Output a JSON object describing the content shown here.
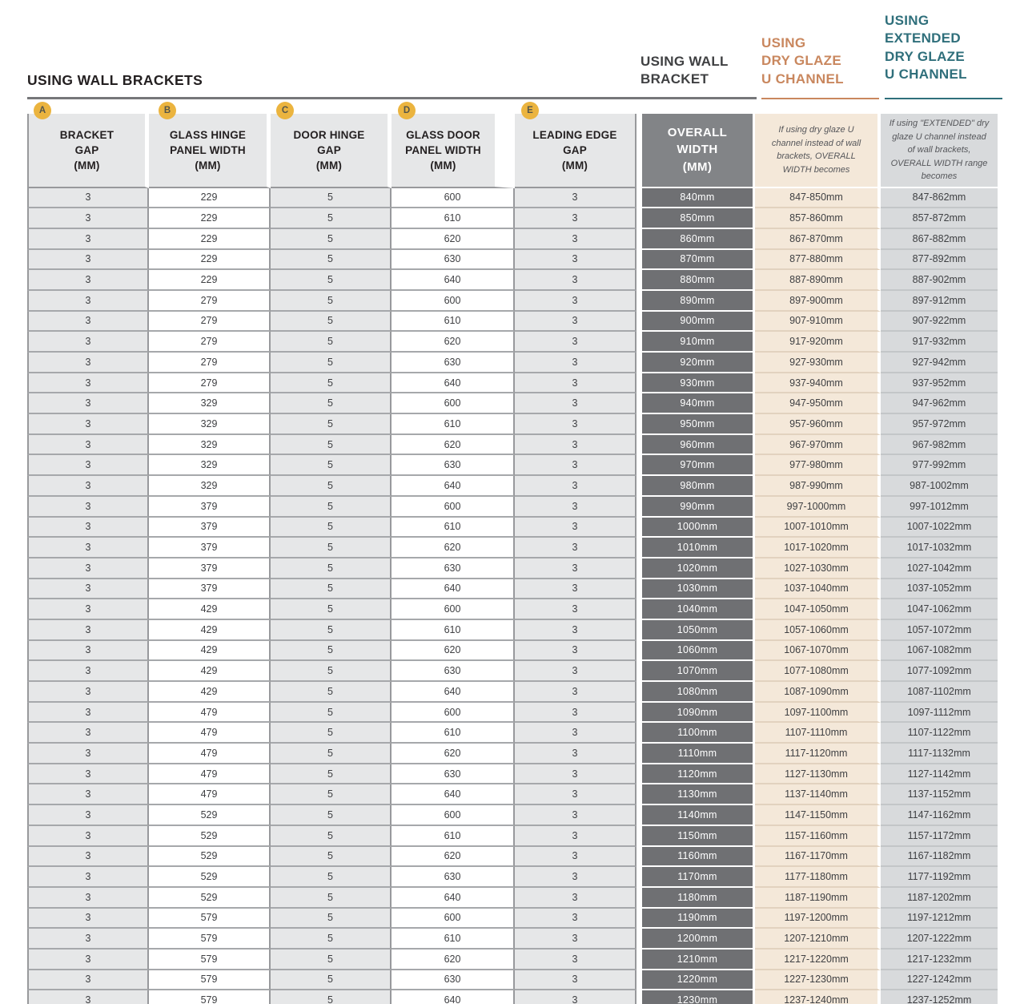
{
  "page": {
    "title": "USING WALL BRACKETS"
  },
  "group_headers": {
    "wall_bracket": {
      "label": "USING WALL\nBRACKET",
      "color": "#3F4042"
    },
    "dry_glaze": {
      "label": "USING\nDRY GLAZE\nU CHANNEL",
      "color": "#C9875E"
    },
    "extended": {
      "label": "USING\nEXTENDED\nDRY GLAZE\nU CHANNEL",
      "color": "#2F6F7B"
    }
  },
  "badges": [
    "A",
    "B",
    "C",
    "D",
    "E"
  ],
  "columns": {
    "bracket_gap_label": "BRACKET\nGAP\n(MM)",
    "glass_hinge_label": "GLASS HINGE\nPANEL WIDTH\n(MM)",
    "door_hinge_label": "DOOR HINGE\nGAP\n(MM)",
    "glass_door_label": "GLASS DOOR\nPANEL WIDTH\n(MM)",
    "leading_edge_label": "LEADING EDGE\nGAP\n(MM)",
    "overall_label": "OVERALL\nWIDTH\n(MM)",
    "dry_glaze_note": "If using dry glaze U channel instead of wall brackets, OVERALL WIDTH becomes",
    "extended_note": "If using \"EXTENDED\" dry glaze U channel instead of wall brackets, OVERALL WIDTH range becomes"
  },
  "colors": {
    "badge_gold": "#EBB43F",
    "light_gray_cell": "#E6E7E8",
    "overall_header_bg": "#828487",
    "overall_cell_bg": "#6F7073",
    "dry_glaze_bg": "#F4E8D9",
    "extended_bg": "#D8DADC",
    "border_gray": "#98999C",
    "accent_orange": "#C9875E",
    "accent_teal": "#2F6F7B"
  },
  "table_rows": [
    [
      "3",
      "229",
      "5",
      "600",
      "3",
      "840mm",
      "847-850mm",
      "847-862mm"
    ],
    [
      "3",
      "229",
      "5",
      "610",
      "3",
      "850mm",
      "857-860mm",
      "857-872mm"
    ],
    [
      "3",
      "229",
      "5",
      "620",
      "3",
      "860mm",
      "867-870mm",
      "867-882mm"
    ],
    [
      "3",
      "229",
      "5",
      "630",
      "3",
      "870mm",
      "877-880mm",
      "877-892mm"
    ],
    [
      "3",
      "229",
      "5",
      "640",
      "3",
      "880mm",
      "887-890mm",
      "887-902mm"
    ],
    [
      "3",
      "279",
      "5",
      "600",
      "3",
      "890mm",
      "897-900mm",
      "897-912mm"
    ],
    [
      "3",
      "279",
      "5",
      "610",
      "3",
      "900mm",
      "907-910mm",
      "907-922mm"
    ],
    [
      "3",
      "279",
      "5",
      "620",
      "3",
      "910mm",
      "917-920mm",
      "917-932mm"
    ],
    [
      "3",
      "279",
      "5",
      "630",
      "3",
      "920mm",
      "927-930mm",
      "927-942mm"
    ],
    [
      "3",
      "279",
      "5",
      "640",
      "3",
      "930mm",
      "937-940mm",
      "937-952mm"
    ],
    [
      "3",
      "329",
      "5",
      "600",
      "3",
      "940mm",
      "947-950mm",
      "947-962mm"
    ],
    [
      "3",
      "329",
      "5",
      "610",
      "3",
      "950mm",
      "957-960mm",
      "957-972mm"
    ],
    [
      "3",
      "329",
      "5",
      "620",
      "3",
      "960mm",
      "967-970mm",
      "967-982mm"
    ],
    [
      "3",
      "329",
      "5",
      "630",
      "3",
      "970mm",
      "977-980mm",
      "977-992mm"
    ],
    [
      "3",
      "329",
      "5",
      "640",
      "3",
      "980mm",
      "987-990mm",
      "987-1002mm"
    ],
    [
      "3",
      "379",
      "5",
      "600",
      "3",
      "990mm",
      "997-1000mm",
      "997-1012mm"
    ],
    [
      "3",
      "379",
      "5",
      "610",
      "3",
      "1000mm",
      "1007-1010mm",
      "1007-1022mm"
    ],
    [
      "3",
      "379",
      "5",
      "620",
      "3",
      "1010mm",
      "1017-1020mm",
      "1017-1032mm"
    ],
    [
      "3",
      "379",
      "5",
      "630",
      "3",
      "1020mm",
      "1027-1030mm",
      "1027-1042mm"
    ],
    [
      "3",
      "379",
      "5",
      "640",
      "3",
      "1030mm",
      "1037-1040mm",
      "1037-1052mm"
    ],
    [
      "3",
      "429",
      "5",
      "600",
      "3",
      "1040mm",
      "1047-1050mm",
      "1047-1062mm"
    ],
    [
      "3",
      "429",
      "5",
      "610",
      "3",
      "1050mm",
      "1057-1060mm",
      "1057-1072mm"
    ],
    [
      "3",
      "429",
      "5",
      "620",
      "3",
      "1060mm",
      "1067-1070mm",
      "1067-1082mm"
    ],
    [
      "3",
      "429",
      "5",
      "630",
      "3",
      "1070mm",
      "1077-1080mm",
      "1077-1092mm"
    ],
    [
      "3",
      "429",
      "5",
      "640",
      "3",
      "1080mm",
      "1087-1090mm",
      "1087-1102mm"
    ],
    [
      "3",
      "479",
      "5",
      "600",
      "3",
      "1090mm",
      "1097-1100mm",
      "1097-1112mm"
    ],
    [
      "3",
      "479",
      "5",
      "610",
      "3",
      "1100mm",
      "1107-1110mm",
      "1107-1122mm"
    ],
    [
      "3",
      "479",
      "5",
      "620",
      "3",
      "1110mm",
      "1117-1120mm",
      "1117-1132mm"
    ],
    [
      "3",
      "479",
      "5",
      "630",
      "3",
      "1120mm",
      "1127-1130mm",
      "1127-1142mm"
    ],
    [
      "3",
      "479",
      "5",
      "640",
      "3",
      "1130mm",
      "1137-1140mm",
      "1137-1152mm"
    ],
    [
      "3",
      "529",
      "5",
      "600",
      "3",
      "1140mm",
      "1147-1150mm",
      "1147-1162mm"
    ],
    [
      "3",
      "529",
      "5",
      "610",
      "3",
      "1150mm",
      "1157-1160mm",
      "1157-1172mm"
    ],
    [
      "3",
      "529",
      "5",
      "620",
      "3",
      "1160mm",
      "1167-1170mm",
      "1167-1182mm"
    ],
    [
      "3",
      "529",
      "5",
      "630",
      "3",
      "1170mm",
      "1177-1180mm",
      "1177-1192mm"
    ],
    [
      "3",
      "529",
      "5",
      "640",
      "3",
      "1180mm",
      "1187-1190mm",
      "1187-1202mm"
    ],
    [
      "3",
      "579",
      "5",
      "600",
      "3",
      "1190mm",
      "1197-1200mm",
      "1197-1212mm"
    ],
    [
      "3",
      "579",
      "5",
      "610",
      "3",
      "1200mm",
      "1207-1210mm",
      "1207-1222mm"
    ],
    [
      "3",
      "579",
      "5",
      "620",
      "3",
      "1210mm",
      "1217-1220mm",
      "1217-1232mm"
    ],
    [
      "3",
      "579",
      "5",
      "630",
      "3",
      "1220mm",
      "1227-1230mm",
      "1227-1242mm"
    ],
    [
      "3",
      "579",
      "5",
      "640",
      "3",
      "1230mm",
      "1237-1240mm",
      "1237-1252mm"
    ]
  ]
}
